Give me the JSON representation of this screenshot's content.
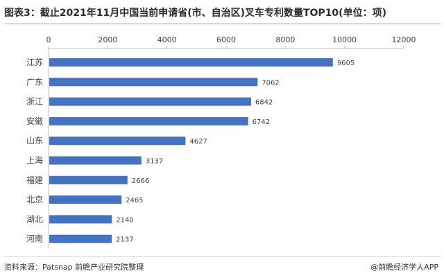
{
  "header": {
    "title": "图表3：截止2021年11月中国当前申请省(市、自治区)叉车专利数量TOP10(单位：项)"
  },
  "footer": {
    "source": "资料来源：Patsnap 前瞻产业研究院整理",
    "brand": "@前瞻经济学人APP"
  },
  "colors": {
    "bar": "#4472c4",
    "axis": "#bfbfbf",
    "grid": "#d9d9d9",
    "text": "#404040"
  },
  "chart_data": {
    "type": "bar",
    "orientation": "horizontal",
    "categories": [
      "江苏",
      "广东",
      "浙江",
      "安徽",
      "山东",
      "上海",
      "福建",
      "北京",
      "湖北",
      "河南"
    ],
    "values": [
      9605,
      7062,
      6842,
      6742,
      4627,
      3137,
      2666,
      2465,
      2140,
      2137
    ],
    "value_labels": [
      "9605",
      "7062",
      "6842",
      "6742",
      "4627",
      "3137",
      "2666",
      "2465",
      "2140",
      "2137"
    ],
    "xlim": [
      0,
      12000
    ],
    "xticks": [
      0,
      2000,
      4000,
      6000,
      8000,
      10000,
      12000
    ],
    "xtick_labels": [
      "0",
      "2000",
      "4000",
      "6000",
      "8000",
      "10000",
      "12000"
    ],
    "x_axis_position": "top",
    "grid": false,
    "legend": "none"
  }
}
